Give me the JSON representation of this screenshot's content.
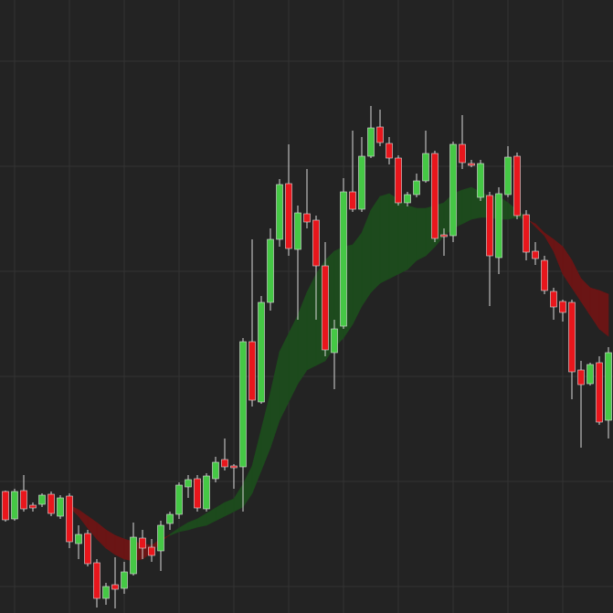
{
  "chart_data": {
    "type": "candlestick",
    "open": [
      133,
      103,
      134,
      118,
      119,
      130,
      106,
      128,
      76,
      87,
      55,
      16,
      31,
      27,
      43,
      82,
      72,
      68,
      98,
      108,
      138,
      147,
      114,
      147,
      168,
      161,
      160,
      297,
      231,
      340,
      409,
      470,
      398,
      437,
      430,
      380,
      285,
      314,
      461,
      442,
      500,
      532,
      514,
      498,
      449,
      458,
      473,
      503,
      414,
      413,
      513,
      492,
      455,
      457,
      389,
      458,
      500,
      436,
      396,
      386,
      352,
      341,
      340,
      266,
      251,
      274,
      211
    ],
    "high": [
      134,
      136,
      151,
      121,
      131,
      133,
      129,
      131,
      96,
      91,
      59,
      33,
      61,
      56,
      99,
      91,
      81,
      101,
      111,
      143,
      151,
      151,
      153,
      171,
      191,
      163,
      301,
      409,
      347,
      421,
      475,
      513,
      446,
      486,
      435,
      406,
      321,
      476,
      528,
      521,
      555,
      551,
      521,
      501,
      461,
      481,
      528,
      506,
      421,
      516,
      545,
      496,
      496,
      461,
      466,
      511,
      504,
      441,
      406,
      391,
      356,
      343,
      343,
      276,
      274,
      281,
      291
    ],
    "low": [
      100,
      101,
      111,
      111,
      116,
      106,
      103,
      71,
      59,
      51,
      6,
      9,
      5,
      21,
      41,
      59,
      56,
      46,
      91,
      103,
      126,
      111,
      111,
      143,
      156,
      136,
      111,
      226,
      229,
      331,
      401,
      391,
      321,
      421,
      321,
      281,
      245,
      311,
      439,
      439,
      498,
      511,
      491,
      446,
      445,
      455,
      471,
      406,
      391,
      406,
      486,
      488,
      451,
      336,
      371,
      455,
      431,
      386,
      381,
      349,
      321,
      319,
      234,
      181,
      249,
      206,
      191
    ],
    "close": [
      102,
      133,
      114,
      115,
      129,
      109,
      126,
      78,
      86,
      54,
      16,
      29,
      26,
      45,
      83,
      71,
      63,
      96,
      108,
      140,
      146,
      115,
      150,
      165,
      160,
      159,
      297,
      233,
      340,
      409,
      469,
      399,
      438,
      428,
      380,
      288,
      311,
      461,
      442,
      500,
      531,
      515,
      498,
      449,
      458,
      473,
      503,
      410,
      412,
      513,
      493,
      490,
      492,
      391,
      459,
      499,
      435,
      395,
      388,
      353,
      335,
      329,
      264,
      250,
      272,
      209,
      285
    ],
    "cloud": {
      "span_a": [
        null,
        null,
        null,
        null,
        null,
        null,
        null,
        116,
        106,
        93,
        81,
        71,
        64,
        59,
        57,
        59,
        66,
        78,
        86,
        93,
        99,
        103,
        109,
        115,
        121,
        125,
        141,
        161,
        201,
        241,
        286,
        306,
        326,
        351,
        371,
        386,
        396,
        401,
        403,
        416,
        441,
        456,
        459,
        453,
        446,
        443,
        443,
        446,
        449,
        459,
        463,
        466,
        461,
        456,
        456,
        449,
        441,
        433,
        423,
        413,
        396,
        371,
        356,
        341,
        326,
        311,
        303
      ],
      "span_b": [
        null,
        null,
        null,
        null,
        null,
        null,
        null,
        118,
        113,
        106,
        99,
        91,
        85,
        81,
        78,
        76,
        74,
        81,
        85,
        89,
        91,
        94,
        96,
        101,
        106,
        111,
        116,
        131,
        156,
        181,
        211,
        231,
        251,
        266,
        271,
        276,
        291,
        301,
        316,
        336,
        351,
        361,
        366,
        371,
        376,
        386,
        391,
        401,
        413,
        421,
        426,
        431,
        433,
        433,
        431,
        431,
        433,
        431,
        426,
        416,
        409,
        401,
        386,
        366,
        356,
        353,
        349
      ]
    },
    "up_color": "#45c845",
    "down_color": "#e8161c",
    "cloud_up_color": "#1d4a1d",
    "cloud_down_color": "#6a1515",
    "background": "#232323",
    "grid": true,
    "ylim": [
      0,
      671
    ],
    "yticks": [
      29,
      144,
      259,
      374,
      489,
      604
    ],
    "xticks": [
      1,
      7,
      13,
      19,
      25,
      31,
      37,
      43,
      49,
      55,
      61
    ]
  }
}
